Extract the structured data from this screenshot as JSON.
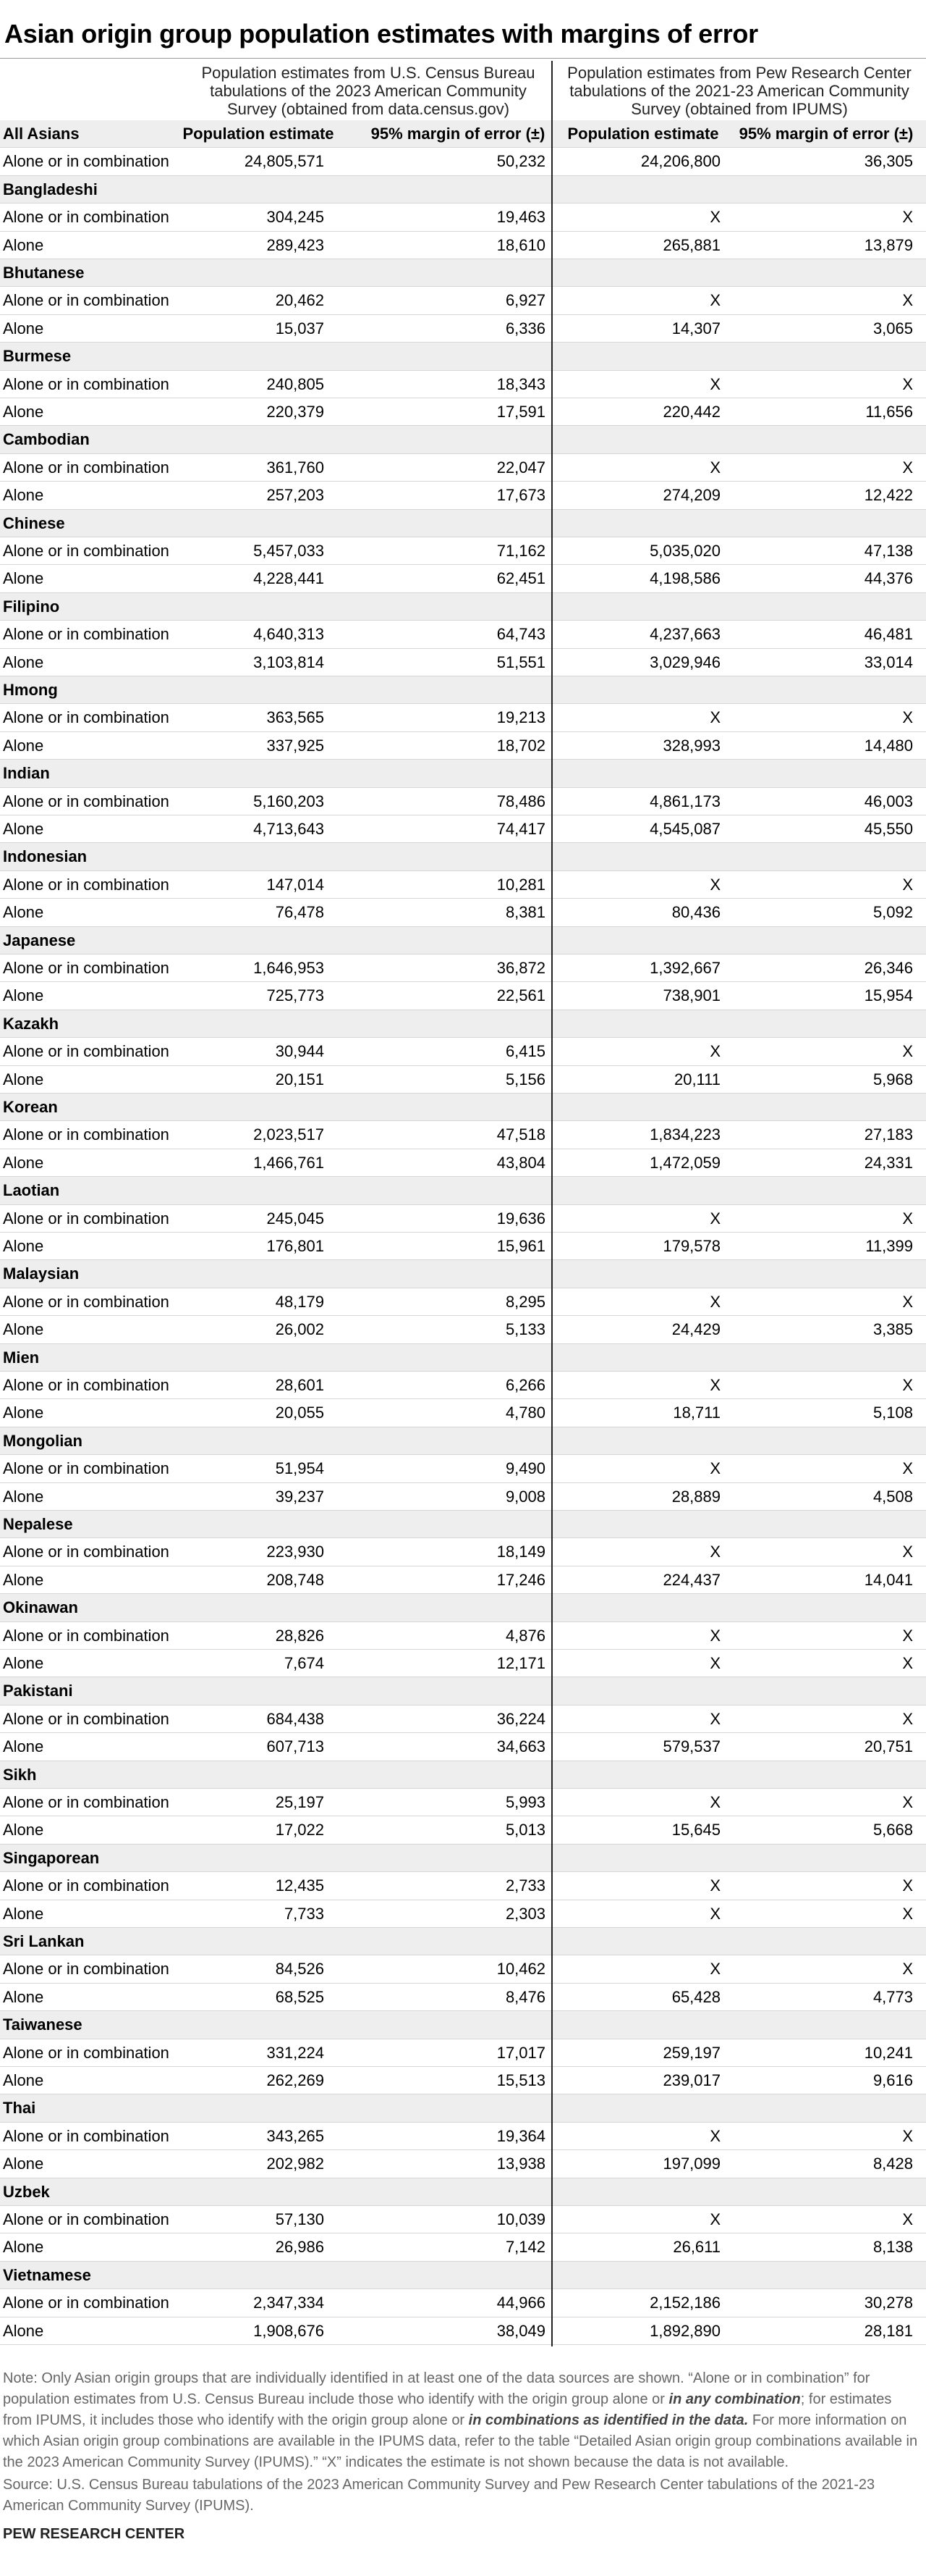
{
  "title": "Asian origin group population estimates with margins of error",
  "header": [
    "Population estimates from U.S. Census Bureau tabulations of the 2023 American Community Survey (obtained from data.census.gov)",
    "Population estimates from Pew Research Center tabulations of the 2021-23 American Community Survey (obtained from IPUMS)"
  ],
  "columns": [
    "All Asians",
    "Population estimate",
    "95% margin of error (±)",
    "Population estimate",
    "95% margin of error (±)"
  ],
  "total_row": [
    "Alone or in combination",
    "24,805,571",
    "50,232",
    "24,206,800",
    "36,305"
  ],
  "groups": [
    {
      "name": "Bangladeshi",
      "rows": [
        [
          "Alone or in combination",
          "304,245",
          "19,463",
          "X",
          "X"
        ],
        [
          "Alone",
          "289,423",
          "18,610",
          "265,881",
          "13,879"
        ]
      ]
    },
    {
      "name": "Bhutanese",
      "rows": [
        [
          "Alone or in combination",
          "20,462",
          "6,927",
          "X",
          "X"
        ],
        [
          "Alone",
          "15,037",
          "6,336",
          "14,307",
          "3,065"
        ]
      ]
    },
    {
      "name": "Burmese",
      "rows": [
        [
          "Alone or in combination",
          "240,805",
          "18,343",
          "X",
          "X"
        ],
        [
          "Alone",
          "220,379",
          "17,591",
          "220,442",
          "11,656"
        ]
      ]
    },
    {
      "name": "Cambodian",
      "rows": [
        [
          "Alone or in combination",
          "361,760",
          "22,047",
          "X",
          "X"
        ],
        [
          "Alone",
          "257,203",
          "17,673",
          "274,209",
          "12,422"
        ]
      ]
    },
    {
      "name": "Chinese",
      "rows": [
        [
          "Alone or in combination",
          "5,457,033",
          "71,162",
          "5,035,020",
          "47,138"
        ],
        [
          "Alone",
          "4,228,441",
          "62,451",
          "4,198,586",
          "44,376"
        ]
      ]
    },
    {
      "name": "Filipino",
      "rows": [
        [
          "Alone or in combination",
          "4,640,313",
          "64,743",
          "4,237,663",
          "46,481"
        ],
        [
          "Alone",
          "3,103,814",
          "51,551",
          "3,029,946",
          "33,014"
        ]
      ]
    },
    {
      "name": "Hmong",
      "rows": [
        [
          "Alone or in combination",
          "363,565",
          "19,213",
          "X",
          "X"
        ],
        [
          "Alone",
          "337,925",
          "18,702",
          "328,993",
          "14,480"
        ]
      ]
    },
    {
      "name": "Indian",
      "rows": [
        [
          "Alone or in combination",
          "5,160,203",
          "78,486",
          "4,861,173",
          "46,003"
        ],
        [
          "Alone",
          "4,713,643",
          "74,417",
          "4,545,087",
          "45,550"
        ]
      ]
    },
    {
      "name": "Indonesian",
      "rows": [
        [
          "Alone or in combination",
          "147,014",
          "10,281",
          "X",
          "X"
        ],
        [
          "Alone",
          "76,478",
          "8,381",
          "80,436",
          "5,092"
        ]
      ]
    },
    {
      "name": "Japanese",
      "rows": [
        [
          "Alone or in combination",
          "1,646,953",
          "36,872",
          "1,392,667",
          "26,346"
        ],
        [
          "Alone",
          "725,773",
          "22,561",
          "738,901",
          "15,954"
        ]
      ]
    },
    {
      "name": "Kazakh",
      "rows": [
        [
          "Alone or in combination",
          "30,944",
          "6,415",
          "X",
          "X"
        ],
        [
          "Alone",
          "20,151",
          "5,156",
          "20,111",
          "5,968"
        ]
      ]
    },
    {
      "name": "Korean",
      "rows": [
        [
          "Alone or in combination",
          "2,023,517",
          "47,518",
          "1,834,223",
          "27,183"
        ],
        [
          "Alone",
          "1,466,761",
          "43,804",
          "1,472,059",
          "24,331"
        ]
      ]
    },
    {
      "name": "Laotian",
      "rows": [
        [
          "Alone or in combination",
          "245,045",
          "19,636",
          "X",
          "X"
        ],
        [
          "Alone",
          "176,801",
          "15,961",
          "179,578",
          "11,399"
        ]
      ]
    },
    {
      "name": "Malaysian",
      "rows": [
        [
          "Alone or in combination",
          "48,179",
          "8,295",
          "X",
          "X"
        ],
        [
          "Alone",
          "26,002",
          "5,133",
          "24,429",
          "3,385"
        ]
      ]
    },
    {
      "name": "Mien",
      "rows": [
        [
          "Alone or in combination",
          "28,601",
          "6,266",
          "X",
          "X"
        ],
        [
          "Alone",
          "20,055",
          "4,780",
          "18,711",
          "5,108"
        ]
      ]
    },
    {
      "name": "Mongolian",
      "rows": [
        [
          "Alone or in combination",
          "51,954",
          "9,490",
          "X",
          "X"
        ],
        [
          "Alone",
          "39,237",
          "9,008",
          "28,889",
          "4,508"
        ]
      ]
    },
    {
      "name": "Nepalese",
      "rows": [
        [
          "Alone or in combination",
          "223,930",
          "18,149",
          "X",
          "X"
        ],
        [
          "Alone",
          "208,748",
          "17,246",
          "224,437",
          "14,041"
        ]
      ]
    },
    {
      "name": "Okinawan",
      "rows": [
        [
          "Alone or in combination",
          "28,826",
          "4,876",
          "X",
          "X"
        ],
        [
          "Alone",
          "7,674",
          "12,171",
          "X",
          "X"
        ]
      ]
    },
    {
      "name": "Pakistani",
      "rows": [
        [
          "Alone or in combination",
          "684,438",
          "36,224",
          "X",
          "X"
        ],
        [
          "Alone",
          "607,713",
          "34,663",
          "579,537",
          "20,751"
        ]
      ]
    },
    {
      "name": "Sikh",
      "rows": [
        [
          "Alone or in combination",
          "25,197",
          "5,993",
          "X",
          "X"
        ],
        [
          "Alone",
          "17,022",
          "5,013",
          "15,645",
          "5,668"
        ]
      ]
    },
    {
      "name": "Singaporean",
      "rows": [
        [
          "Alone or in combination",
          "12,435",
          "2,733",
          "X",
          "X"
        ],
        [
          "Alone",
          "7,733",
          "2,303",
          "X",
          "X"
        ]
      ]
    },
    {
      "name": "Sri Lankan",
      "rows": [
        [
          "Alone or in combination",
          "84,526",
          "10,462",
          "X",
          "X"
        ],
        [
          "Alone",
          "68,525",
          "8,476",
          "65,428",
          "4,773"
        ]
      ]
    },
    {
      "name": "Taiwanese",
      "rows": [
        [
          "Alone or in combination",
          "331,224",
          "17,017",
          "259,197",
          "10,241"
        ],
        [
          "Alone",
          "262,269",
          "15,513",
          "239,017",
          "9,616"
        ]
      ]
    },
    {
      "name": "Thai",
      "rows": [
        [
          "Alone or in combination",
          "343,265",
          "19,364",
          "X",
          "X"
        ],
        [
          "Alone",
          "202,982",
          "13,938",
          "197,099",
          "8,428"
        ]
      ]
    },
    {
      "name": "Uzbek",
      "rows": [
        [
          "Alone or in combination",
          "57,130",
          "10,039",
          "X",
          "X"
        ],
        [
          "Alone",
          "26,986",
          "7,142",
          "26,611",
          "8,138"
        ]
      ]
    },
    {
      "name": "Vietnamese",
      "rows": [
        [
          "Alone or in combination",
          "2,347,334",
          "44,966",
          "2,152,186",
          "30,278"
        ],
        [
          "Alone",
          "1,908,676",
          "38,049",
          "1,892,890",
          "28,181"
        ]
      ]
    }
  ],
  "note": [
    "Note: Only Asian origin groups that are individually identified in at least one of the data sources are shown. “Alone or in combination” for population estimates from U.S. Census Bureau include those who identify with the origin group alone or ",
    "in any combination",
    "; for estimates from IPUMS, it includes those who identify with the origin group alone or ",
    "in combinations as identified in the data.",
    " For more information on which Asian origin group combinations are available in the IPUMS data, refer to the table “Detailed Asian origin group combinations available in the 2023 American Community Survey (IPUMS).” “X” indicates the estimate is not shown because the data is not available."
  ],
  "source": "Source: U.S. Census Bureau tabulations of the 2023 American Community Survey and Pew Research Center tabulations of the 2021-23 American Community Survey (IPUMS).",
  "footer": "PEW RESEARCH CENTER"
}
